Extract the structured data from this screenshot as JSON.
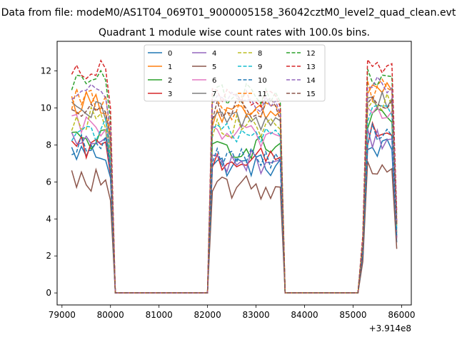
{
  "chart_data": {
    "type": "line",
    "suptitle": "Data from file: modeM0/AS1T04_069T01_9000005158_36042cztM0_level2_quad_clean.evt",
    "title": "Quadrant 1 module wise count rates with 100.0s bins.",
    "xlabel": "",
    "ylabel": "",
    "x_offset_label": "+3.914e8",
    "xlim": [
      78900,
      86200
    ],
    "ylim": [
      -0.65,
      13.6
    ],
    "xticks": [
      79000,
      80000,
      81000,
      82000,
      83000,
      84000,
      85000,
      86000
    ],
    "xtick_labels": [
      "79000",
      "80000",
      "81000",
      "82000",
      "83000",
      "84000",
      "85000",
      "86000"
    ],
    "yticks": [
      0,
      2,
      4,
      6,
      8,
      10,
      12
    ],
    "ytick_labels": [
      "0",
      "2",
      "4",
      "6",
      "8",
      "10",
      "12"
    ],
    "grid": false,
    "legend_position": "upper center",
    "legend_columns": 4,
    "series": [
      {
        "name": "0",
        "color": "#1f77b4",
        "dashed": false,
        "baselevels": [
          7.6,
          6.9,
          7.8
        ]
      },
      {
        "name": "1",
        "color": "#ff7f0e",
        "dashed": false,
        "baselevels": [
          10.3,
          9.6,
          11.0
        ]
      },
      {
        "name": "2",
        "color": "#2ca02c",
        "dashed": false,
        "baselevels": [
          8.3,
          7.9,
          9.3
        ]
      },
      {
        "name": "3",
        "color": "#d62728",
        "dashed": false,
        "baselevels": [
          7.8,
          7.2,
          8.6
        ]
      },
      {
        "name": "4",
        "color": "#9467bd",
        "dashed": false,
        "baselevels": [
          8.2,
          7.1,
          8.4
        ]
      },
      {
        "name": "5",
        "color": "#8c564b",
        "dashed": false,
        "baselevels": [
          6.1,
          5.7,
          6.8
        ]
      },
      {
        "name": "6",
        "color": "#e377c2",
        "dashed": false,
        "baselevels": [
          9.0,
          8.5,
          9.9
        ]
      },
      {
        "name": "7",
        "color": "#7f7f7f",
        "dashed": false,
        "baselevels": [
          9.7,
          9.4,
          10.6
        ]
      },
      {
        "name": "8",
        "color": "#bcbd22",
        "dashed": true,
        "baselevels": [
          9.4,
          9.0,
          10.2
        ]
      },
      {
        "name": "9",
        "color": "#17becf",
        "dashed": true,
        "baselevels": [
          8.8,
          8.7,
          9.7
        ]
      },
      {
        "name": "10",
        "color": "#1f77b4",
        "dashed": true,
        "baselevels": [
          8.0,
          7.4,
          8.6
        ]
      },
      {
        "name": "11",
        "color": "#ff7f0e",
        "dashed": true,
        "baselevels": [
          10.4,
          10.0,
          11.0
        ]
      },
      {
        "name": "12",
        "color": "#2ca02c",
        "dashed": true,
        "baselevels": [
          11.4,
          10.7,
          11.8
        ]
      },
      {
        "name": "13",
        "color": "#d62728",
        "dashed": true,
        "baselevels": [
          12.2,
          10.5,
          12.5
        ]
      },
      {
        "name": "14",
        "color": "#9467bd",
        "dashed": true,
        "baselevels": [
          10.8,
          10.2,
          11.2
        ]
      },
      {
        "name": "15",
        "color": "#8c564b",
        "dashed": true,
        "baselevels": [
          10.2,
          9.9,
          10.5
        ]
      }
    ],
    "segments": [
      {
        "start": 79200,
        "end": 80000,
        "drop_to_zero_at": 80100
      },
      {
        "start": 82100,
        "end": 83500,
        "drop_to_zero_at": 83600
      },
      {
        "start": 85200,
        "end": 85900,
        "drop_to_zero_at": null
      }
    ],
    "zero_level": 0
  }
}
